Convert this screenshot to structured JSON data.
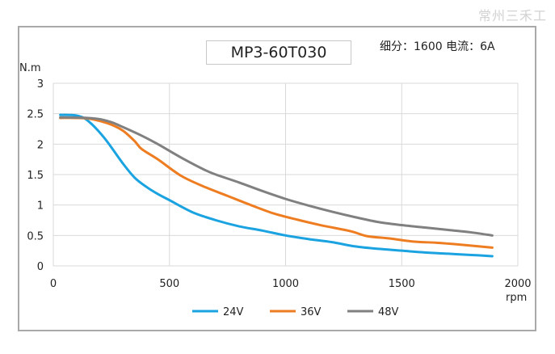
{
  "watermark": "常州三禾工",
  "colors": {
    "24V": "#1aa3e0",
    "36V": "#ee7d22",
    "48V": "#808080",
    "grid": "#d9d9d9",
    "frame": "#a9a9a9"
  },
  "chart_data": {
    "type": "line",
    "title": "MP3-60T030",
    "subtitle": "细分：1600 电流：6A",
    "xlabel": "rpm",
    "ylabel": "N.m",
    "xlim": [
      0,
      2000
    ],
    "ylim": [
      0,
      3
    ],
    "xticks": [
      0,
      500,
      1000,
      1500,
      2000
    ],
    "yticks": [
      0,
      0.5,
      1,
      1.5,
      2,
      2.5,
      3
    ],
    "grid": true,
    "legend_position": "bottom-center",
    "series": [
      {
        "name": "24V",
        "color": "#1aa3e0",
        "x": [
          30,
          100,
          150,
          220,
          300,
          350,
          400,
          450,
          500,
          600,
          700,
          800,
          900,
          1000,
          1100,
          1200,
          1300,
          1400,
          1500,
          1600,
          1700,
          1800,
          1890
        ],
        "y": [
          2.48,
          2.47,
          2.38,
          2.1,
          1.68,
          1.45,
          1.3,
          1.18,
          1.08,
          0.88,
          0.75,
          0.65,
          0.58,
          0.5,
          0.44,
          0.39,
          0.32,
          0.28,
          0.25,
          0.22,
          0.2,
          0.18,
          0.16
        ]
      },
      {
        "name": "36V",
        "color": "#ee7d22",
        "x": [
          30,
          100,
          150,
          200,
          250,
          300,
          350,
          380,
          450,
          550,
          650,
          750,
          850,
          950,
          1050,
          1150,
          1280,
          1350,
          1450,
          1550,
          1650,
          1750,
          1890
        ],
        "y": [
          2.43,
          2.43,
          2.42,
          2.38,
          2.32,
          2.22,
          2.05,
          1.92,
          1.75,
          1.48,
          1.3,
          1.15,
          1.0,
          0.86,
          0.76,
          0.67,
          0.57,
          0.49,
          0.45,
          0.4,
          0.38,
          0.35,
          0.3
        ]
      },
      {
        "name": "48V",
        "color": "#808080",
        "x": [
          30,
          150,
          200,
          250,
          300,
          380,
          450,
          550,
          650,
          700,
          800,
          900,
          1000,
          1100,
          1200,
          1300,
          1400,
          1500,
          1600,
          1700,
          1800,
          1890
        ],
        "y": [
          2.44,
          2.43,
          2.41,
          2.36,
          2.28,
          2.14,
          2.0,
          1.78,
          1.58,
          1.5,
          1.37,
          1.23,
          1.1,
          0.99,
          0.89,
          0.8,
          0.72,
          0.67,
          0.63,
          0.59,
          0.55,
          0.5
        ]
      }
    ]
  }
}
